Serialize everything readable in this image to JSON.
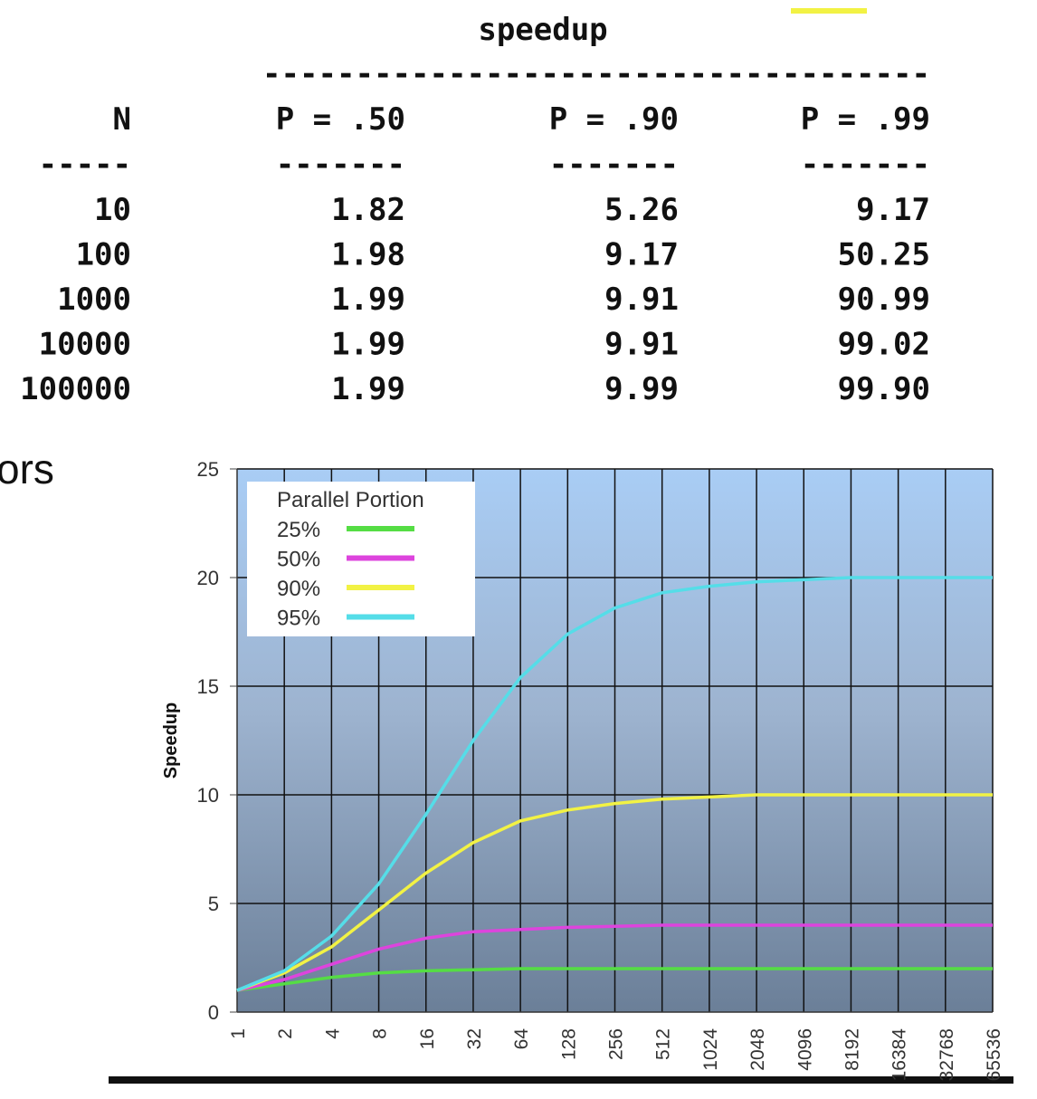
{
  "table": {
    "title": "speedup",
    "rule": "------------------------------------",
    "header": [
      "N",
      "P = .50",
      "P = .90",
      "P = .99"
    ],
    "underline": [
      "-----",
      "-------",
      "-------",
      "-------"
    ],
    "rows": [
      [
        "10",
        "1.82",
        "5.26",
        "9.17"
      ],
      [
        "100",
        "1.98",
        "9.17",
        "50.25"
      ],
      [
        "1000",
        "1.99",
        "9.91",
        "90.99"
      ],
      [
        "10000",
        "1.99",
        "9.91",
        "99.02"
      ],
      [
        "100000",
        "1.99",
        "9.99",
        "99.90"
      ]
    ]
  },
  "side_text": "ors",
  "chart_data": {
    "type": "line",
    "y_label": "Speedup",
    "legend_title": "Parallel Portion",
    "legend": "upper left",
    "grid": true,
    "categories": [
      "1",
      "2",
      "4",
      "8",
      "16",
      "32",
      "64",
      "128",
      "256",
      "512",
      "1024",
      "2048",
      "4096",
      "8192",
      "16384",
      "32768",
      "65536"
    ],
    "ylim": [
      0,
      25
    ],
    "yticks": [
      0,
      5,
      10,
      15,
      20,
      25
    ],
    "series": [
      {
        "name": "25%",
        "color": "#55dd44",
        "values": [
          1,
          1.3,
          1.6,
          1.8,
          1.9,
          1.95,
          2,
          2,
          2,
          2,
          2,
          2,
          2,
          2,
          2,
          2,
          2
        ]
      },
      {
        "name": "50%",
        "color": "#dd44dd",
        "values": [
          1,
          1.5,
          2.2,
          2.9,
          3.4,
          3.7,
          3.8,
          3.9,
          3.95,
          4,
          4,
          4,
          4,
          4,
          4,
          4,
          4
        ]
      },
      {
        "name": "90%",
        "color": "#f2f244",
        "values": [
          1,
          1.8,
          3,
          4.7,
          6.4,
          7.8,
          8.8,
          9.3,
          9.6,
          9.8,
          9.9,
          10,
          10,
          10,
          10,
          10,
          10
        ]
      },
      {
        "name": "95%",
        "color": "#55dde8",
        "values": [
          1,
          1.9,
          3.5,
          5.9,
          9.1,
          12.5,
          15.4,
          17.4,
          18.6,
          19.3,
          19.6,
          19.8,
          19.9,
          20,
          20,
          20,
          20
        ]
      }
    ]
  }
}
